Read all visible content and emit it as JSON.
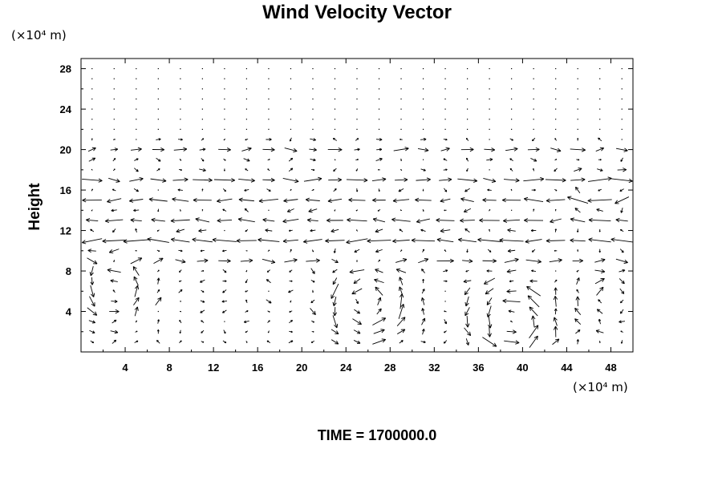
{
  "chart_data": {
    "type": "vector_field",
    "title": "Wind Velocity Vector",
    "ylabel": "Height",
    "x_unit_text": "(×10⁴ m)",
    "y_unit_text": "(×10⁴ m)",
    "xlim": [
      0,
      50
    ],
    "ylim": [
      0,
      29
    ],
    "x_ticks": [
      4,
      8,
      12,
      16,
      20,
      24,
      28,
      32,
      36,
      40,
      44,
      48
    ],
    "y_ticks": [
      4,
      8,
      12,
      16,
      20,
      24,
      28
    ],
    "x_tick_labels": [
      "4",
      "8",
      "12",
      "16",
      "20",
      "24",
      "28",
      "32",
      "36",
      "40",
      "44",
      "48"
    ],
    "y_tick_labels": [
      "4",
      "8",
      "12",
      "16",
      "20",
      "24",
      "28"
    ],
    "grid": false,
    "colors": {
      "axes": "#000000",
      "arrows": "#000000",
      "background": "#ffffff"
    },
    "sampling": {
      "dx": 2,
      "dy": 1,
      "x_start": 1,
      "y_start": 1
    },
    "features": {
      "jets": [
        {
          "y": 20,
          "u": 1.2
        },
        {
          "y": 17,
          "u": 1.8
        },
        {
          "y": 15,
          "u": -1.6
        },
        {
          "y": 13,
          "u": -1.8
        },
        {
          "y": 11,
          "u": -2.2
        },
        {
          "y": 9,
          "u": 1.4
        }
      ],
      "vortices": [
        {
          "cx": 26,
          "cy": 5,
          "strength": 1,
          "radius": 3.5
        },
        {
          "cx": 39,
          "cy": 3,
          "strength": 1,
          "radius": 3.5
        },
        {
          "cx": 48,
          "cy": 5,
          "strength": -0.8,
          "radius": 2.5
        },
        {
          "cx": 3,
          "cy": 6,
          "strength": 0.9,
          "radius": 3.0
        },
        {
          "cx": 47,
          "cy": 16,
          "strength": -0.7,
          "radius": 2.0
        }
      ],
      "quiet_above_y": 21
    },
    "time_label": "TIME = 1700000.0"
  }
}
